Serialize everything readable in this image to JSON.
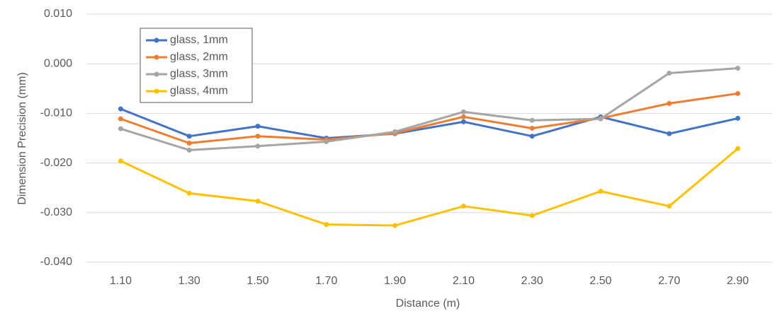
{
  "chart_data": {
    "type": "line",
    "xlabel": "Distance (m)",
    "ylabel": "Dimension Precision (mm)",
    "categories": [
      "1.10",
      "1.30",
      "1.50",
      "1.70",
      "1.90",
      "2.10",
      "2.30",
      "2.50",
      "2.70",
      "2.90"
    ],
    "series": [
      {
        "name": "glass, 1mm",
        "color": "#4472c4",
        "values": [
          -0.0091,
          -0.0146,
          -0.0126,
          -0.015,
          -0.0141,
          -0.0117,
          -0.0146,
          -0.0107,
          -0.0141,
          -0.011
        ]
      },
      {
        "name": "glass, 2mm",
        "color": "#ed7d31",
        "values": [
          -0.0111,
          -0.016,
          -0.0146,
          -0.0153,
          -0.014,
          -0.0107,
          -0.013,
          -0.011,
          -0.008,
          -0.006
        ]
      },
      {
        "name": "glass, 3mm",
        "color": "#a5a5a5",
        "values": [
          -0.0131,
          -0.0174,
          -0.0166,
          -0.0157,
          -0.0137,
          -0.0097,
          -0.0114,
          -0.0111,
          -0.0019,
          -0.0009
        ]
      },
      {
        "name": "glass, 4mm",
        "color": "#ffc000",
        "values": [
          -0.0196,
          -0.0261,
          -0.0277,
          -0.0324,
          -0.0326,
          -0.0287,
          -0.0306,
          -0.0257,
          -0.0287,
          -0.0171
        ]
      }
    ],
    "ylim": [
      -0.04,
      0.01
    ],
    "yticks": [
      {
        "value": -0.04,
        "label": "-0.040"
      },
      {
        "value": -0.03,
        "label": "-0.030"
      },
      {
        "value": -0.02,
        "label": "-0.020"
      },
      {
        "value": -0.01,
        "label": "-0.010"
      },
      {
        "value": 0,
        "label": "0.000"
      },
      {
        "value": 0.01,
        "label": "0.010"
      }
    ],
    "grid": true,
    "legend": "upper-left"
  }
}
